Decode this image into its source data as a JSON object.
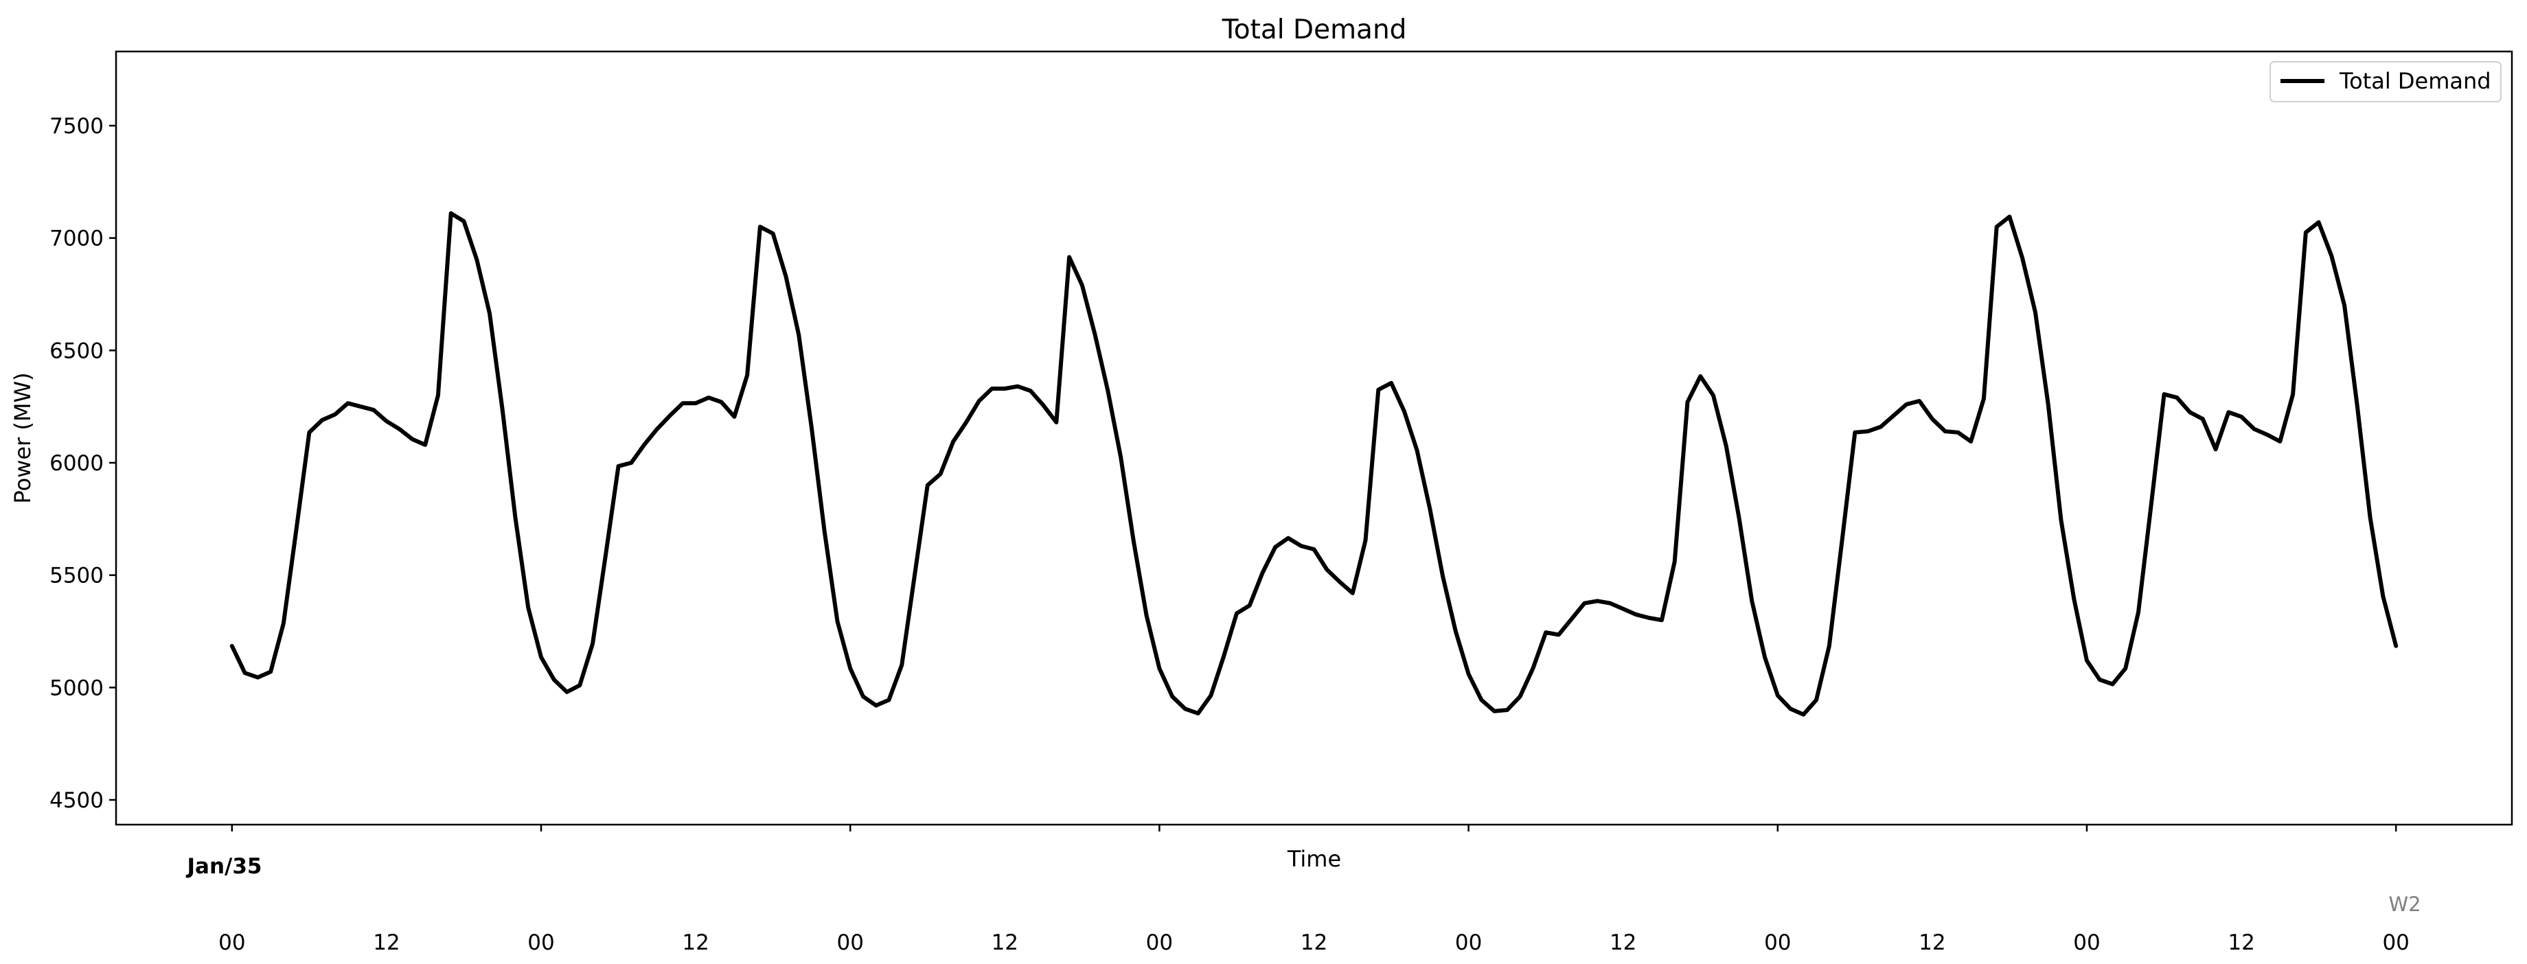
{
  "chart_data": {
    "type": "line",
    "title": "Total Demand",
    "xlabel": "Time",
    "ylabel": "Power (MW)",
    "ylim": [
      4390,
      7830
    ],
    "yticks": [
      4500,
      5000,
      5500,
      6000,
      6500,
      7000,
      7500
    ],
    "xlim": [
      -9,
      177
    ],
    "xticks": [
      {
        "hour": 0,
        "label": "00"
      },
      {
        "hour": 12,
        "label": "12"
      },
      {
        "hour": 24,
        "label": "00"
      },
      {
        "hour": 36,
        "label": "12"
      },
      {
        "hour": 48,
        "label": "00"
      },
      {
        "hour": 60,
        "label": "12"
      },
      {
        "hour": 72,
        "label": "00"
      },
      {
        "hour": 84,
        "label": "12"
      },
      {
        "hour": 96,
        "label": "00"
      },
      {
        "hour": 108,
        "label": "12"
      },
      {
        "hour": 120,
        "label": "00"
      },
      {
        "hour": 132,
        "label": "12"
      },
      {
        "hour": 144,
        "label": "00"
      },
      {
        "hour": 156,
        "label": "12"
      },
      {
        "hour": 168,
        "label": "00"
      }
    ],
    "major_tick_hours": [
      0,
      24,
      48,
      72,
      96,
      120,
      144,
      168
    ],
    "date_label": "Jan/35",
    "week_label": "W2",
    "legend": {
      "position": "upper right",
      "entries": [
        "Total Demand"
      ]
    },
    "grid": false,
    "series": [
      {
        "name": "Total Demand",
        "color": "#000000",
        "values": [
          5185,
          5065,
          5045,
          5070,
          5285,
          5705,
          6135,
          6190,
          6215,
          6265,
          6250,
          6235,
          6185,
          6150,
          6105,
          6080,
          6300,
          7110,
          7075,
          6905,
          6665,
          6235,
          5755,
          5355,
          5135,
          5035,
          4980,
          5010,
          5195,
          5585,
          5985,
          6000,
          6080,
          6150,
          6210,
          6265,
          6265,
          6290,
          6270,
          6205,
          6390,
          7050,
          7020,
          6830,
          6570,
          6155,
          5695,
          5295,
          5085,
          4960,
          4920,
          4945,
          5100,
          5500,
          5900,
          5950,
          6095,
          6180,
          6275,
          6330,
          6330,
          6340,
          6320,
          6255,
          6180,
          6915,
          6790,
          6570,
          6320,
          6025,
          5650,
          5320,
          5085,
          4960,
          4905,
          4885,
          4965,
          5140,
          5330,
          5365,
          5510,
          5625,
          5665,
          5630,
          5615,
          5525,
          5470,
          5420,
          5655,
          6325,
          6355,
          6230,
          6055,
          5795,
          5495,
          5250,
          5060,
          4945,
          4895,
          4900,
          4960,
          5085,
          5245,
          5235,
          5305,
          5375,
          5385,
          5375,
          5350,
          5325,
          5310,
          5300,
          5560,
          6270,
          6385,
          6300,
          6075,
          5755,
          5385,
          5135,
          4965,
          4905,
          4880,
          4945,
          5185,
          5655,
          6135,
          6140,
          6160,
          6210,
          6260,
          6275,
          6195,
          6140,
          6135,
          6095,
          6285,
          7050,
          7095,
          6910,
          6670,
          6260,
          5745,
          5395,
          5120,
          5035,
          5015,
          5085,
          5335,
          5815,
          6305,
          6290,
          6225,
          6195,
          6060,
          6225,
          6205,
          6150,
          6125,
          6095,
          6305,
          7025,
          7070,
          6920,
          6700,
          6250,
          5755,
          5405,
          5185
        ]
      }
    ]
  }
}
